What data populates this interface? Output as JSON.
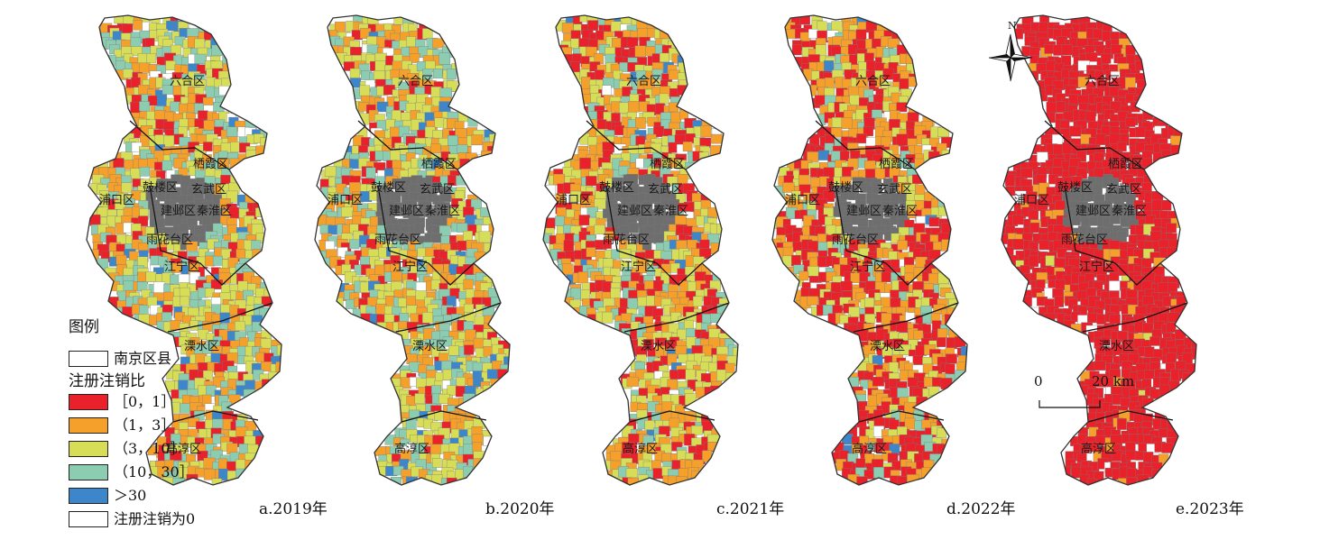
{
  "maps": [
    {
      "caption": "a.2019年",
      "district_labels": [
        "六合区",
        "栖霞区",
        "鼓楼区",
        "玄武区",
        "浦口区",
        "建邺区",
        "秦淮区",
        "雨花台区",
        "江宁区",
        "溧水区",
        "高淳区"
      ],
      "palette_weights": [
        0.14,
        0.24,
        0.32,
        0.22,
        0.05,
        0.03
      ]
    },
    {
      "caption": "b.2020年",
      "district_labels": [
        "六合区",
        "栖霞区",
        "鼓楼区",
        "玄武区",
        "浦口区",
        "建邺区",
        "秦淮区",
        "雨花台区",
        "江宁区",
        "溧水区",
        "高淳区"
      ],
      "palette_weights": [
        0.13,
        0.27,
        0.3,
        0.23,
        0.04,
        0.03
      ]
    },
    {
      "caption": "c.2021年",
      "district_labels": [
        "六合区",
        "栖霞区",
        "鼓楼区",
        "玄武区",
        "浦口区",
        "建邺区",
        "秦淮区",
        "雨花台区",
        "江宁区",
        "溧水区",
        "高淳区"
      ],
      "palette_weights": [
        0.24,
        0.3,
        0.27,
        0.14,
        0.02,
        0.03
      ]
    },
    {
      "caption": "d.2022年",
      "district_labels": [
        "六合区",
        "栖霞区",
        "鼓楼区",
        "玄武区",
        "浦口区",
        "建邺区",
        "秦淮区",
        "雨花台区",
        "江宁区",
        "溧水区",
        "高淳区"
      ],
      "palette_weights": [
        0.42,
        0.31,
        0.17,
        0.06,
        0.01,
        0.03
      ]
    },
    {
      "caption": "e.2023年",
      "district_labels": [
        "六合区",
        "栖霞区",
        "鼓楼区",
        "玄武区",
        "浦口区",
        "建邺区",
        "秦淮区",
        "雨花台区",
        "江宁区",
        "溧水区",
        "高淳区"
      ],
      "palette_weights": [
        0.92,
        0.05,
        0.01,
        0.0,
        0.0,
        0.02
      ]
    }
  ],
  "legend": {
    "title": "图例",
    "boundary_label": "南京区县",
    "ratio_title": "注册注销比",
    "classes": [
      {
        "label": "［0，1］",
        "color": "#e8212a"
      },
      {
        "label": "（1，3］",
        "color": "#f5a02a"
      },
      {
        "label": "（3，10］",
        "color": "#d7dd57"
      },
      {
        "label": "（10，30］",
        "color": "#8ccdb1"
      },
      {
        "label": "＞30",
        "color": "#3d86c9"
      },
      {
        "label": "注册注销为0",
        "color": "#ffffff"
      }
    ]
  },
  "north_arrow": {
    "label": "N"
  },
  "scale_bar": {
    "start_label": "0",
    "end_label": "20 km"
  },
  "colors": {
    "boundary": "#333333",
    "parcel_edge": "#7a7a7a",
    "urban_core": "#6e6e6e"
  }
}
